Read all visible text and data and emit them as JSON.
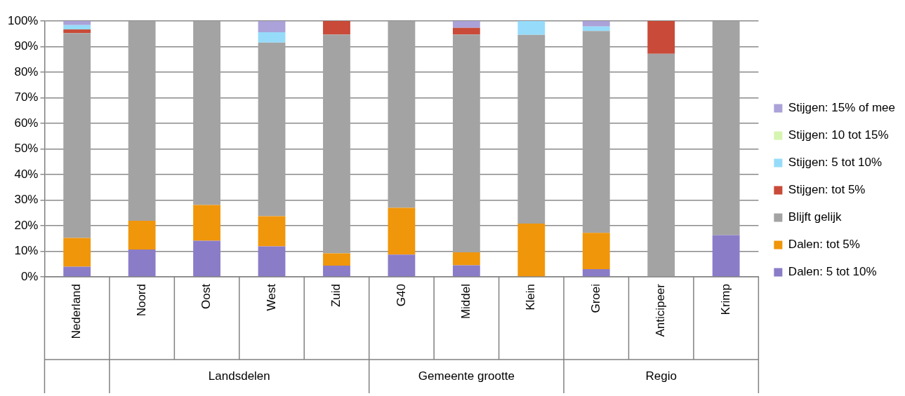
{
  "chart_data": {
    "type": "bar",
    "stacked": true,
    "categories": [
      "Nederland",
      "Noord",
      "Oost",
      "West",
      "Zuid",
      "G40",
      "Middel",
      "Klein",
      "Groei",
      "Anticipeer",
      "Krimp"
    ],
    "series": [
      {
        "name": "Dalen: 5 tot 10%",
        "color": "#8b7cc8",
        "values": [
          4.0,
          10.7,
          14.1,
          11.9,
          4.4,
          8.7,
          4.5,
          0,
          3.0,
          0,
          16.3
        ]
      },
      {
        "name": "Dalen: tot 5%",
        "color": "#f0960a",
        "values": [
          11.2,
          11.2,
          14.0,
          11.8,
          4.8,
          18.3,
          5.1,
          20.8,
          14.2,
          0,
          0
        ]
      },
      {
        "name": "Blijft gelijk",
        "color": "#a3a3a3",
        "values": [
          80.1,
          78.1,
          71.9,
          67.9,
          85.5,
          73.0,
          85.1,
          73.8,
          78.9,
          87.2,
          83.7
        ]
      },
      {
        "name": "Stijgen: tot 5%",
        "color": "#c94a38",
        "values": [
          1.4,
          0,
          0,
          0,
          5.3,
          0,
          2.6,
          0,
          0,
          12.8,
          0
        ]
      },
      {
        "name": "Stijgen: 5 tot 10%",
        "color": "#96dcfa",
        "values": [
          1.7,
          0,
          0,
          4.0,
          0,
          0,
          0,
          5.4,
          1.8,
          0,
          0
        ]
      },
      {
        "name": "Stijgen: 10 tot 15%",
        "color": "#d6f5b0",
        "values": [
          0,
          0,
          0,
          0,
          0,
          0,
          0,
          0,
          0,
          0,
          0
        ]
      },
      {
        "name": "Stijgen: 15% of mee",
        "color": "#aaa2d8",
        "values": [
          1.6,
          0,
          0,
          4.4,
          0,
          0,
          2.7,
          0,
          2.1,
          0,
          0
        ]
      }
    ],
    "ylim": [
      0,
      100
    ],
    "yticks": [
      {
        "value": 0,
        "label": "0%"
      },
      {
        "value": 10,
        "label": "10%"
      },
      {
        "value": 20,
        "label": "20%"
      },
      {
        "value": 30,
        "label": "30%"
      },
      {
        "value": 40,
        "label": "40%"
      },
      {
        "value": 50,
        "label": "50%"
      },
      {
        "value": 60,
        "label": "60%"
      },
      {
        "value": 70,
        "label": "70%"
      },
      {
        "value": 80,
        "label": "80%"
      },
      {
        "value": 90,
        "label": "90%"
      },
      {
        "value": 100,
        "label": "100%"
      }
    ],
    "grid": "y",
    "legend": "right",
    "annotations": [
      "Landsdelen",
      "Gemeente grootte",
      "Regio"
    ]
  }
}
